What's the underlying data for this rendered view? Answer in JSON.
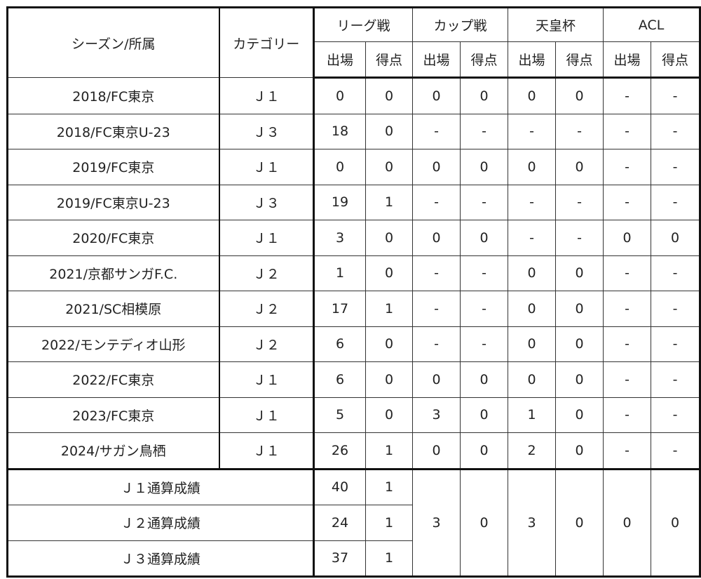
{
  "table": {
    "header": {
      "season": "シーズン/所属",
      "category": "カテゴリー",
      "groups": [
        "リーグ戦",
        "カップ戦",
        "天皇杯",
        "ACL"
      ],
      "sub": [
        "出場",
        "得点",
        "出場",
        "得点",
        "出場",
        "得点",
        "出場",
        "得点"
      ]
    },
    "rows": [
      [
        "2018/FC東京",
        "Ｊ１",
        "0",
        "0",
        "0",
        "0",
        "0",
        "0",
        "-",
        "-"
      ],
      [
        "2018/FC東京U-23",
        "Ｊ３",
        "18",
        "0",
        "-",
        "-",
        "-",
        "-",
        "-",
        "-"
      ],
      [
        "2019/FC東京",
        "Ｊ１",
        "0",
        "0",
        "0",
        "0",
        "0",
        "0",
        "-",
        "-"
      ],
      [
        "2019/FC東京U-23",
        "Ｊ３",
        "19",
        "1",
        "-",
        "-",
        "-",
        "-",
        "-",
        "-"
      ],
      [
        "2020/FC東京",
        "Ｊ１",
        "3",
        "0",
        "0",
        "0",
        "-",
        "-",
        "0",
        "0"
      ],
      [
        "2021/京都サンガF.C.",
        "Ｊ２",
        "1",
        "0",
        "-",
        "-",
        "0",
        "0",
        "-",
        "-"
      ],
      [
        "2021/SC相模原",
        "Ｊ２",
        "17",
        "1",
        "-",
        "-",
        "0",
        "0",
        "-",
        "-"
      ],
      [
        "2022/モンテディオ山形",
        "Ｊ２",
        "6",
        "0",
        "-",
        "-",
        "0",
        "0",
        "-",
        "-"
      ],
      [
        "2022/FC東京",
        "Ｊ１",
        "6",
        "0",
        "0",
        "0",
        "0",
        "0",
        "-",
        "-"
      ],
      [
        "2023/FC東京",
        "Ｊ１",
        "5",
        "0",
        "3",
        "0",
        "1",
        "0",
        "-",
        "-"
      ],
      [
        "2024/サガン鳥栖",
        "Ｊ１",
        "26",
        "1",
        "0",
        "0",
        "2",
        "0",
        "-",
        "-"
      ]
    ],
    "totals": {
      "rows": [
        {
          "label": "Ｊ１通算成績",
          "league": [
            "40",
            "1"
          ]
        },
        {
          "label": "Ｊ２通算成績",
          "league": [
            "24",
            "1"
          ]
        },
        {
          "label": "Ｊ３通算成績",
          "league": [
            "37",
            "1"
          ]
        }
      ],
      "shared": [
        "3",
        "0",
        "3",
        "0",
        "0",
        "0"
      ]
    }
  }
}
